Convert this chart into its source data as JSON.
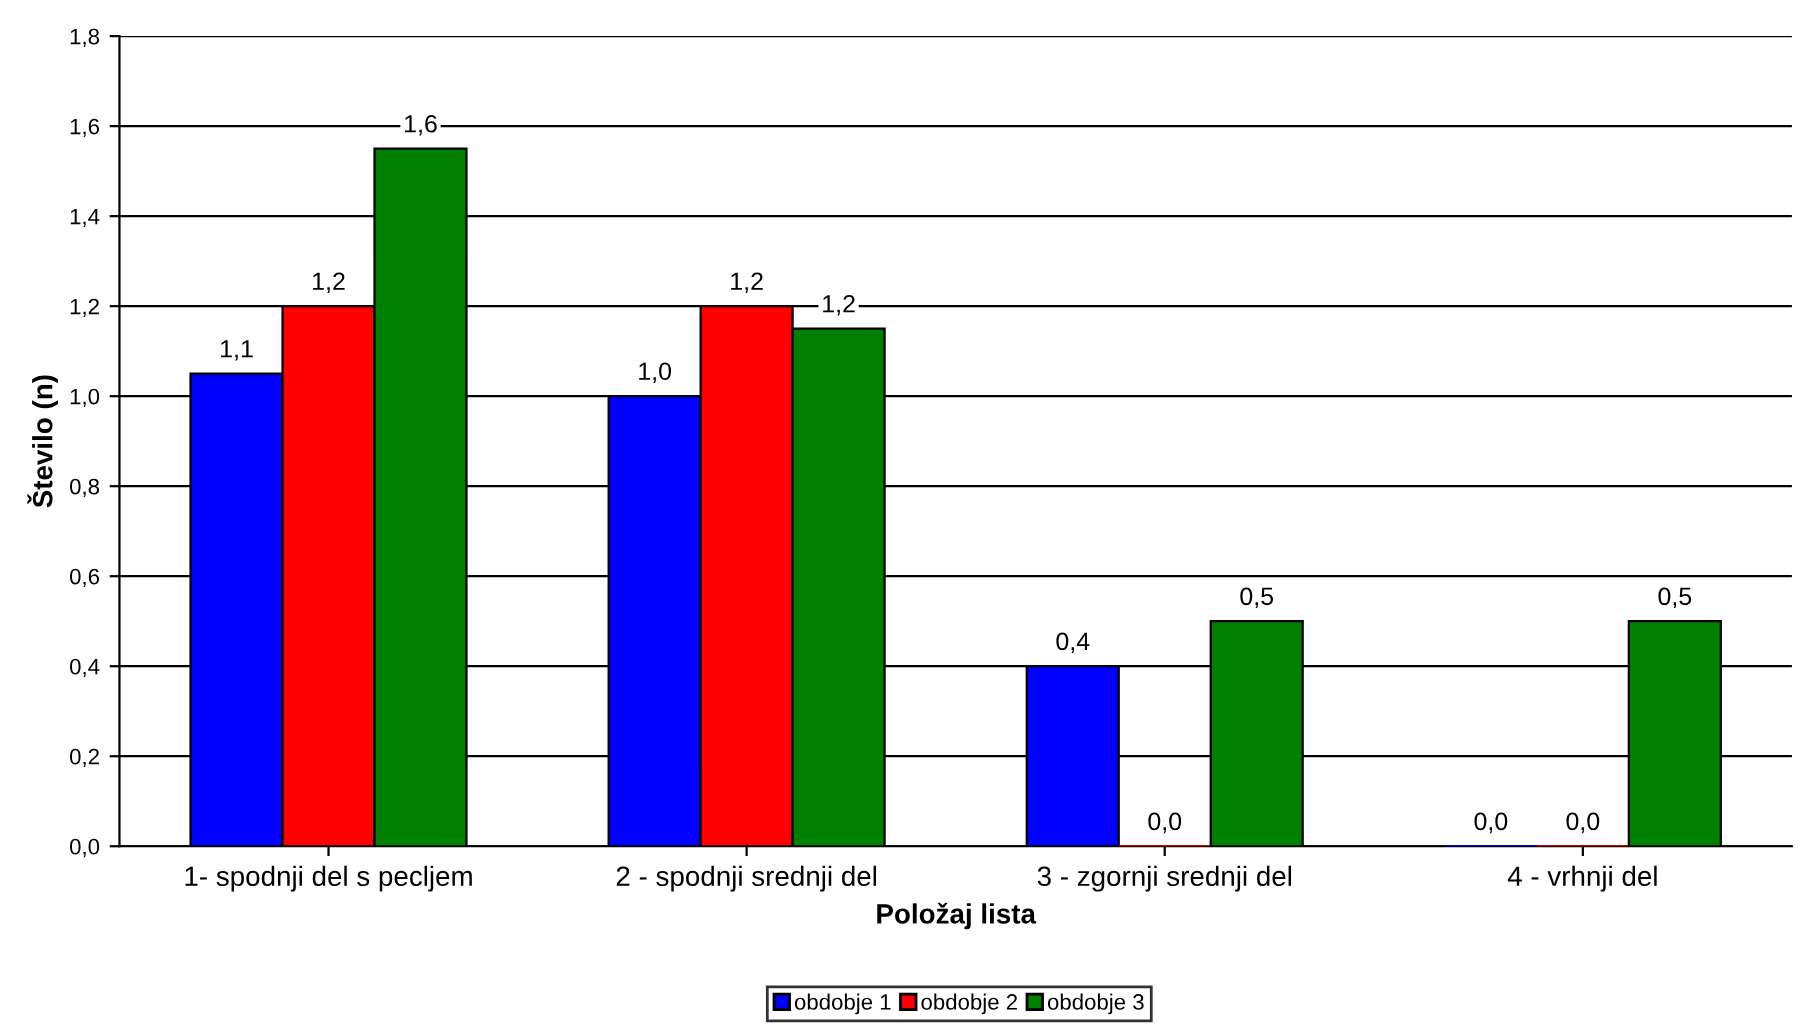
{
  "chart_data": {
    "type": "bar",
    "xlabel": "Položaj lista",
    "ylabel": "Število (n)",
    "categories": [
      "1- spodnji del s pecljem",
      "2 - spodnji srednji del",
      "3 - zgornji srednji del",
      "4 - vrhnji del"
    ],
    "series": [
      {
        "name": "obdobje 1",
        "color": "#0000ff",
        "values": [
          1.05,
          1.0,
          0.4,
          0
        ],
        "value_labels": [
          "1,1",
          "1,0",
          "0,4",
          "0,0"
        ]
      },
      {
        "name": "obdobje 2",
        "color": "#ff0000",
        "values": [
          1.2,
          1.2,
          0,
          0
        ],
        "value_labels": [
          "1,2",
          "1,2",
          "0,0",
          "0,0"
        ]
      },
      {
        "name": "obdobje 3",
        "color": "#008000",
        "values": [
          1.55,
          1.15,
          0.5,
          0.5
        ],
        "value_labels": [
          "1,6",
          "1,2",
          "0,5",
          "0,5"
        ]
      }
    ],
    "ylim": [
      0,
      1.8
    ],
    "yticks": [
      {
        "value": 0,
        "label": "0,0"
      },
      {
        "value": 0.2,
        "label": "0,2"
      },
      {
        "value": 0.4,
        "label": "0,4"
      },
      {
        "value": 0.6,
        "label": "0,6"
      },
      {
        "value": 0.8,
        "label": "0,8"
      },
      {
        "value": 1.0,
        "label": "1,0"
      },
      {
        "value": 1.2,
        "label": "1,2"
      },
      {
        "value": 1.4,
        "label": "1,4"
      },
      {
        "value": 1.6,
        "label": "1,6"
      },
      {
        "value": 1.8,
        "label": "1,8"
      }
    ],
    "grid": "y",
    "legend": "bottom"
  }
}
